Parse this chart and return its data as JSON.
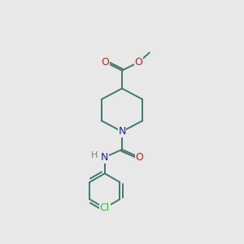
{
  "background_color": "#e8e8e8",
  "bond_color": "#3d7a6e",
  "bond_width": 1.4,
  "atom_colors": {
    "N": "#1a1acc",
    "O": "#cc1a1a",
    "Cl": "#4aaa4a",
    "H": "#808080",
    "C": "#3d7a6e"
  },
  "figsize": [
    3.0,
    3.0
  ],
  "dpi": 100
}
